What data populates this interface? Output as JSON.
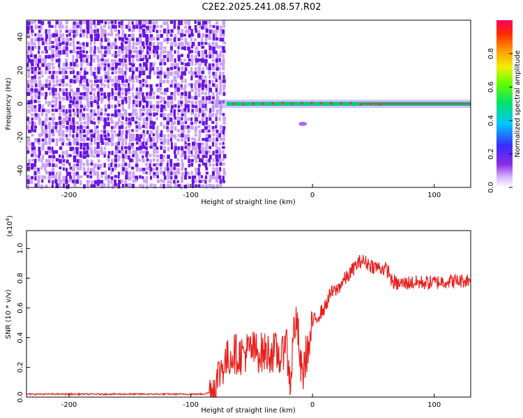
{
  "title": "C2E2.2025.241.08.57.R02",
  "colors": {
    "signal": "#e8201c",
    "axis": "#000000",
    "noise_dark": "#6a14e6",
    "noise_light": "#c9a3f5"
  },
  "chart_data": [
    {
      "type": "heatmap",
      "name": "spectrogram",
      "xlabel": "Height of straight line (km)",
      "ylabel": "Frequency (Hz)",
      "xlim": [
        -235,
        130
      ],
      "ylim": [
        -50,
        50
      ],
      "xticks": [
        -200,
        -100,
        0,
        100
      ],
      "yticks": [
        -40,
        -20,
        0,
        20,
        40
      ],
      "noise_region_x": [
        -235,
        -72
      ],
      "signal_line_frequency": 0,
      "signal_onset_x": -82,
      "colorbar": {
        "label": "Normalized spectral amplitude",
        "range": [
          0,
          1
        ],
        "ticks": [
          "0.0",
          "0.2",
          "0.4",
          "0.6",
          "0.8"
        ],
        "colormap": "rainbow (white-violet-blue-cyan-green-yellow-red)"
      }
    },
    {
      "type": "line",
      "name": "snr",
      "xlabel": "Height of straight line (km)",
      "ylabel": "SNR (10 * v/v)",
      "yscale_label": "(x10",
      "yscale_exp": "4",
      "yscale_close": ")",
      "xlim": [
        -235,
        130
      ],
      "ylim": [
        0,
        1.12
      ],
      "xticks": [
        -200,
        -100,
        0,
        100
      ],
      "yticks": [
        "0.0",
        "0.2",
        "0.4",
        "0.6",
        "0.8",
        "1.0"
      ],
      "series": [
        {
          "x": [
            -235,
            -200,
            -150,
            -100,
            -90,
            -85,
            -80,
            -75,
            -70,
            -65,
            -60,
            -55,
            -50,
            -45,
            -40,
            -35,
            -30,
            -25,
            -22,
            -20,
            -18,
            -15,
            -12,
            -10,
            -8,
            -5,
            -2,
            0,
            5,
            10,
            15,
            20,
            25,
            30,
            35,
            38,
            40,
            45,
            50,
            55,
            60,
            63,
            65,
            70,
            80,
            90,
            100,
            110,
            120,
            130
          ],
          "y": [
            0.02,
            0.02,
            0.02,
            0.02,
            0.02,
            0.03,
            0.08,
            0.2,
            0.25,
            0.3,
            0.28,
            0.3,
            0.32,
            0.3,
            0.3,
            0.3,
            0.3,
            0.25,
            0.45,
            0.2,
            0.1,
            0.5,
            0.45,
            0.2,
            0.15,
            0.3,
            0.35,
            0.5,
            0.55,
            0.6,
            0.7,
            0.72,
            0.78,
            0.82,
            0.88,
            0.9,
            0.92,
            0.9,
            0.88,
            0.87,
            0.86,
            0.84,
            0.78,
            0.76,
            0.77,
            0.77,
            0.77,
            0.78,
            0.78,
            0.79
          ]
        }
      ]
    }
  ]
}
